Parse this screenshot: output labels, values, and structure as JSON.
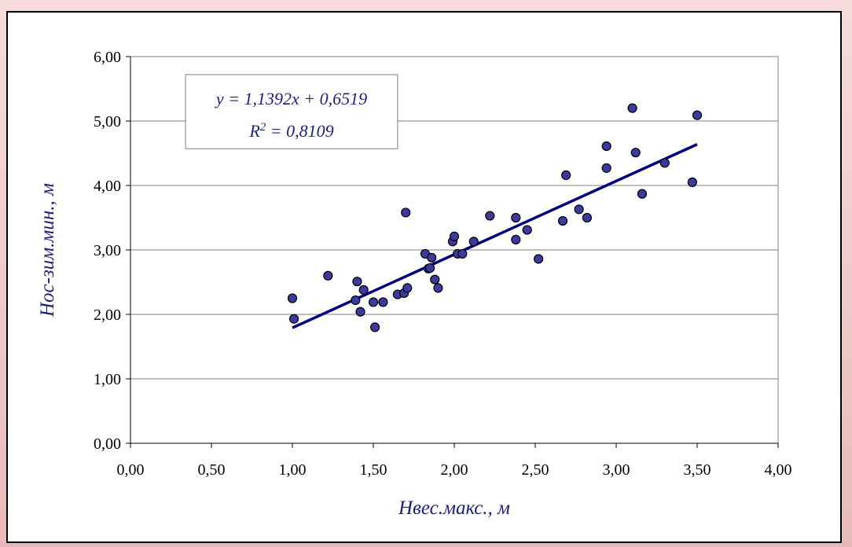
{
  "chart_data": {
    "type": "scatter",
    "xlabel": "Hвес.макс., м",
    "ylabel": "Hос-зим.мин., м",
    "xlim": [
      0,
      4
    ],
    "ylim": [
      0,
      6
    ],
    "x_ticks": [
      "0,00",
      "0,50",
      "1,00",
      "1,50",
      "2,00",
      "2,50",
      "3,00",
      "3,50",
      "4,00"
    ],
    "y_ticks": [
      "0,00",
      "1,00",
      "2,00",
      "3,00",
      "4,00",
      "5,00",
      "6,00"
    ],
    "grid": "horizontal",
    "marker_color": "#3b3b9e",
    "line_color": "#000080",
    "annotation": {
      "equation": "y = 1,1392x + 0,6519",
      "r_label": "R",
      "r_exp": "2",
      "r_value": " = 0,8109"
    },
    "trendline": {
      "slope": 1.1392,
      "intercept": 0.6519,
      "x_range": [
        1.0,
        3.5
      ]
    },
    "points": [
      [
        1.0,
        2.25
      ],
      [
        1.01,
        1.93
      ],
      [
        1.22,
        2.6
      ],
      [
        1.39,
        2.22
      ],
      [
        1.4,
        2.51
      ],
      [
        1.42,
        2.04
      ],
      [
        1.44,
        2.38
      ],
      [
        1.5,
        2.19
      ],
      [
        1.51,
        1.8
      ],
      [
        1.56,
        2.19
      ],
      [
        1.65,
        2.31
      ],
      [
        1.69,
        2.33
      ],
      [
        1.7,
        3.58
      ],
      [
        1.71,
        2.41
      ],
      [
        1.82,
        2.94
      ],
      [
        1.84,
        2.71
      ],
      [
        1.85,
        2.72
      ],
      [
        1.86,
        2.88
      ],
      [
        1.88,
        2.54
      ],
      [
        1.9,
        2.41
      ],
      [
        1.99,
        3.13
      ],
      [
        2.0,
        3.21
      ],
      [
        2.02,
        2.94
      ],
      [
        2.05,
        2.94
      ],
      [
        2.12,
        3.13
      ],
      [
        2.22,
        3.53
      ],
      [
        2.38,
        3.5
      ],
      [
        2.38,
        3.16
      ],
      [
        2.45,
        3.31
      ],
      [
        2.52,
        2.86
      ],
      [
        2.67,
        3.45
      ],
      [
        2.69,
        4.16
      ],
      [
        2.77,
        3.63
      ],
      [
        2.82,
        3.5
      ],
      [
        2.94,
        4.61
      ],
      [
        2.94,
        4.27
      ],
      [
        3.1,
        5.2
      ],
      [
        3.12,
        4.51
      ],
      [
        3.16,
        3.87
      ],
      [
        3.3,
        4.35
      ],
      [
        3.47,
        4.05
      ],
      [
        3.5,
        5.09
      ]
    ]
  }
}
